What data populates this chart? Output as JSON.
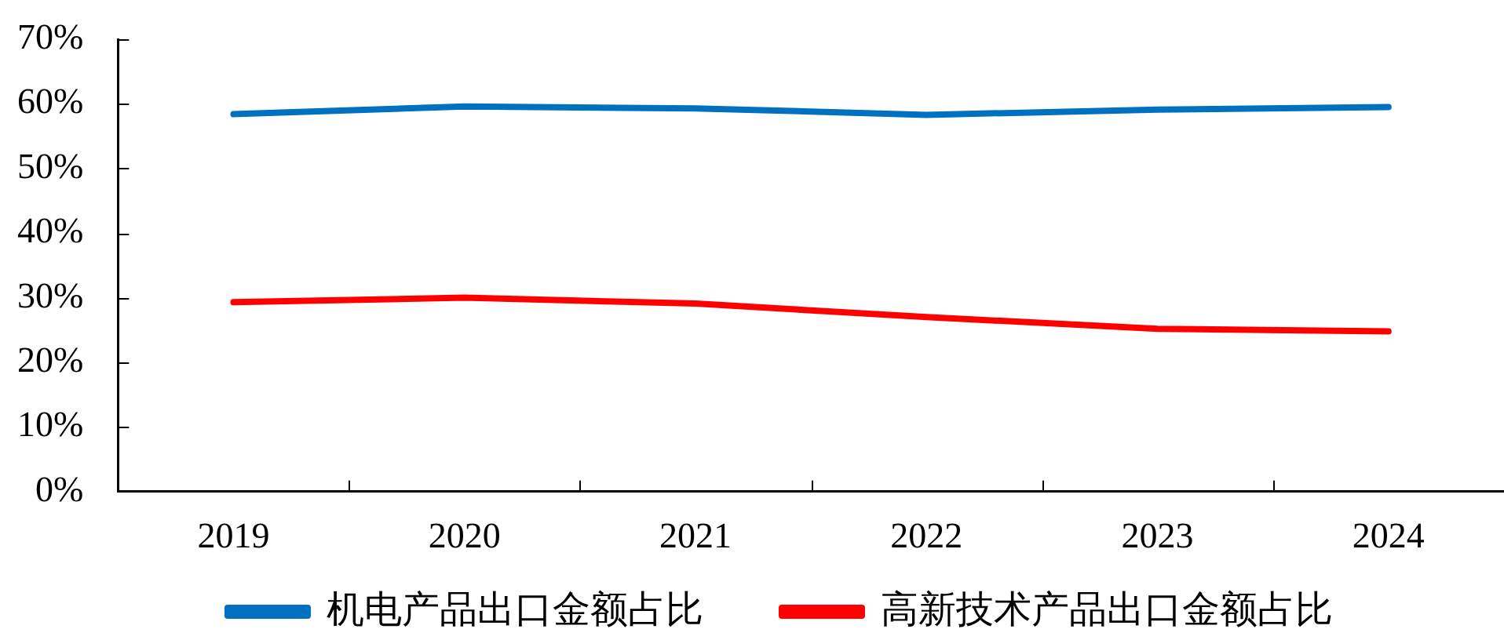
{
  "chart_data": {
    "type": "line",
    "categories": [
      "2019",
      "2020",
      "2021",
      "2022",
      "2023",
      "2024"
    ],
    "series": [
      {
        "name": "机电产品出口金额占比",
        "color": "#0070c0",
        "values": [
          58.4,
          59.6,
          59.3,
          58.3,
          59.1,
          59.5
        ]
      },
      {
        "name": "高新技术产品出口金额占比",
        "color": "#ff0000",
        "values": [
          29.3,
          30.0,
          29.1,
          27.0,
          25.2,
          24.8
        ]
      }
    ],
    "ylim": [
      0,
      70
    ],
    "yticks": [
      {
        "value": 0,
        "label": "0%"
      },
      {
        "value": 10,
        "label": "10%"
      },
      {
        "value": 20,
        "label": "20%"
      },
      {
        "value": 30,
        "label": "30%"
      },
      {
        "value": 40,
        "label": "40%"
      },
      {
        "value": 50,
        "label": "50%"
      },
      {
        "value": 60,
        "label": "60%"
      },
      {
        "value": 70,
        "label": "70%"
      }
    ],
    "grid": false,
    "legend": "bottom",
    "marker": "none",
    "line_style": "solid"
  }
}
